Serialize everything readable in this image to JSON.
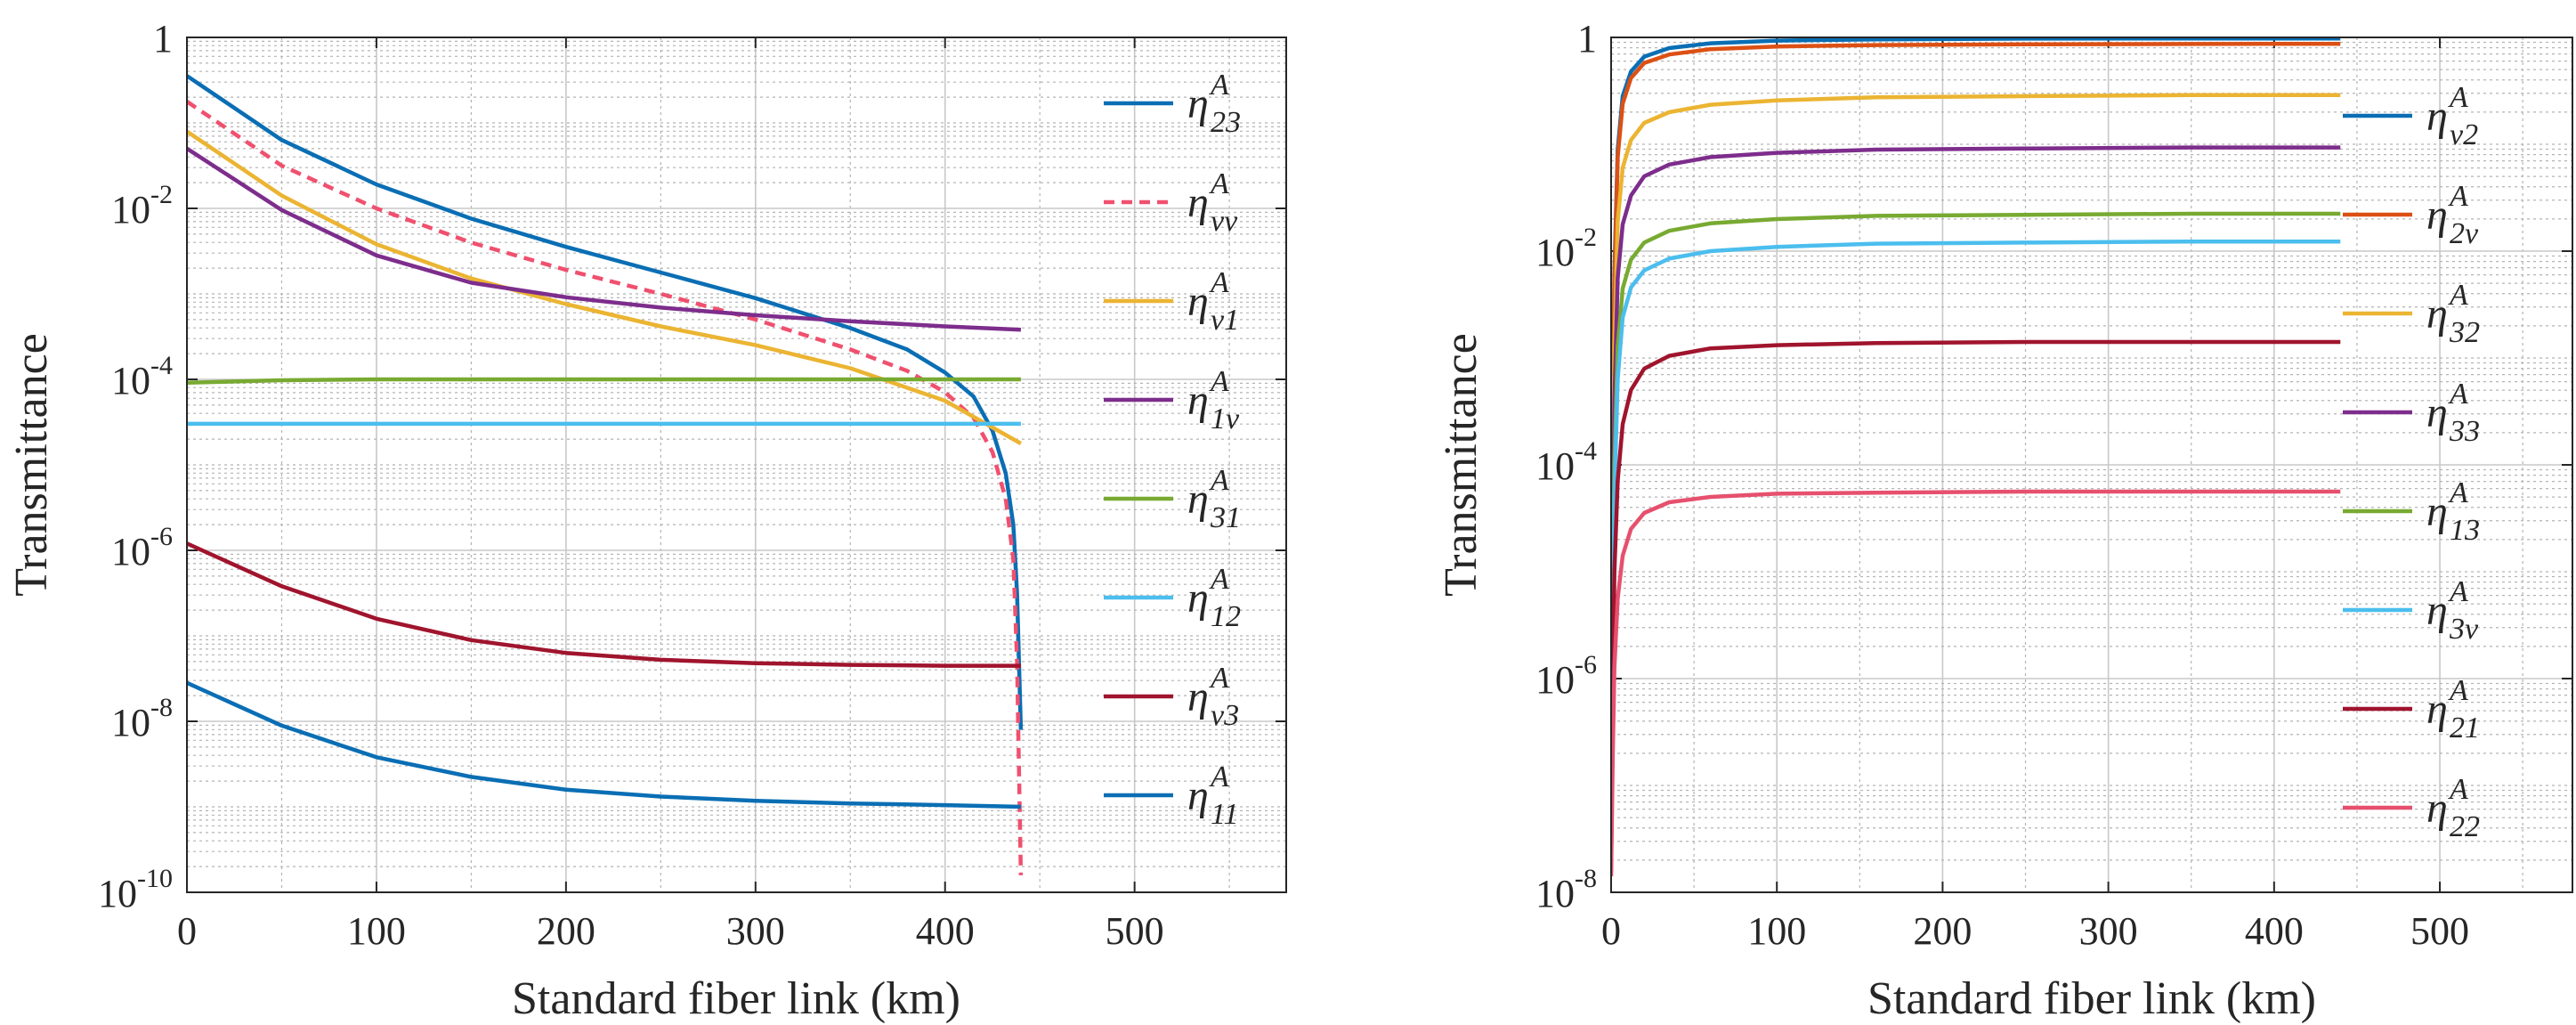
{
  "chart_data": [
    {
      "type": "line",
      "panel": "left",
      "xlabel": "Standard fiber link (km)",
      "ylabel": "Transmittance",
      "xlim": [
        0,
        580
      ],
      "ylim_log10": [
        -10,
        0
      ],
      "yscale": "log",
      "grid": true,
      "legend_position": "right",
      "x_ticks": [
        0,
        100,
        200,
        300,
        400,
        500
      ],
      "x_tick_labels": [
        "0",
        "100",
        "200",
        "300",
        "400",
        "500"
      ],
      "y_ticks_log10": [
        0,
        -2,
        -4,
        -6,
        -8,
        -10
      ],
      "y_tick_labels": [
        {
          "base": "1",
          "exp": ""
        },
        {
          "base": "10",
          "exp": "-2"
        },
        {
          "base": "10",
          "exp": "-4"
        },
        {
          "base": "10",
          "exp": "-6"
        },
        {
          "base": "10",
          "exp": "-8"
        },
        {
          "base": "10",
          "exp": "-10"
        }
      ],
      "series": [
        {
          "name": "η23A",
          "symbol": "η",
          "sup": "A",
          "sub": "23",
          "color": "#0a6eb4",
          "dash": false,
          "x": [
            0,
            50,
            100,
            150,
            200,
            250,
            300,
            350,
            380,
            400,
            415,
            425,
            432,
            436,
            438,
            440
          ],
          "log10_y": [
            -0.45,
            -1.2,
            -1.72,
            -2.12,
            -2.45,
            -2.75,
            -3.05,
            -3.4,
            -3.65,
            -3.92,
            -4.2,
            -4.6,
            -5.1,
            -5.7,
            -6.5,
            -8.1
          ]
        },
        {
          "name": "ηvvA",
          "symbol": "η",
          "sup": "A",
          "sub": "vv",
          "color": "#f0506e",
          "dash": true,
          "x": [
            0,
            50,
            100,
            150,
            200,
            250,
            300,
            350,
            380,
            400,
            415,
            425,
            432,
            436,
            438,
            440
          ],
          "log10_y": [
            -0.75,
            -1.5,
            -2.0,
            -2.4,
            -2.72,
            -3.0,
            -3.3,
            -3.65,
            -3.9,
            -4.15,
            -4.45,
            -4.85,
            -5.4,
            -6.1,
            -7.3,
            -9.8
          ]
        },
        {
          "name": "ηv1A",
          "symbol": "η",
          "sup": "A",
          "sub": "v1",
          "color": "#ebb432",
          "dash": false,
          "x": [
            0,
            50,
            100,
            150,
            200,
            250,
            300,
            350,
            400,
            440
          ],
          "log10_y": [
            -1.1,
            -1.85,
            -2.42,
            -2.82,
            -3.12,
            -3.38,
            -3.6,
            -3.87,
            -4.25,
            -4.75
          ]
        },
        {
          "name": "η1vA",
          "symbol": "η",
          "sup": "A",
          "sub": "1v",
          "color": "#7d2d8c",
          "dash": false,
          "x": [
            0,
            50,
            100,
            150,
            200,
            250,
            300,
            350,
            400,
            440
          ],
          "log10_y": [
            -1.3,
            -2.02,
            -2.55,
            -2.87,
            -3.04,
            -3.16,
            -3.25,
            -3.32,
            -3.38,
            -3.42
          ]
        },
        {
          "name": "η31A",
          "symbol": "η",
          "sup": "A",
          "sub": "31",
          "color": "#78aa32",
          "dash": false,
          "x": [
            0,
            50,
            100,
            200,
            300,
            440
          ],
          "log10_y": [
            -4.04,
            -4.01,
            -4.0,
            -4.0,
            -4.0,
            -4.0
          ]
        },
        {
          "name": "η12A",
          "symbol": "η",
          "sup": "A",
          "sub": "12",
          "color": "#4bbeee",
          "dash": false,
          "x": [
            0,
            440
          ],
          "log10_y": [
            -4.52,
            -4.52
          ]
        },
        {
          "name": "ηv3A",
          "symbol": "η",
          "sup": "A",
          "sub": "v3",
          "color": "#a0142d",
          "dash": false,
          "x": [
            0,
            50,
            100,
            150,
            200,
            250,
            300,
            350,
            400,
            440
          ],
          "log10_y": [
            -5.92,
            -6.42,
            -6.8,
            -7.05,
            -7.2,
            -7.28,
            -7.32,
            -7.34,
            -7.35,
            -7.35
          ]
        },
        {
          "name": "η11A",
          "symbol": "η",
          "sup": "A",
          "sub": "11",
          "color": "#0a6eb4",
          "dash": false,
          "x": [
            0,
            50,
            100,
            150,
            200,
            250,
            300,
            350,
            400,
            440
          ],
          "log10_y": [
            -7.55,
            -8.05,
            -8.42,
            -8.65,
            -8.8,
            -8.88,
            -8.93,
            -8.96,
            -8.98,
            -9.0
          ]
        }
      ]
    },
    {
      "type": "line",
      "panel": "right",
      "xlabel": "Standard fiber link (km)",
      "ylabel": "Transmittance",
      "xlim": [
        0,
        580
      ],
      "ylim_log10": [
        -8,
        0
      ],
      "yscale": "log",
      "grid": true,
      "legend_position": "right",
      "x_ticks": [
        0,
        100,
        200,
        300,
        400,
        500
      ],
      "x_tick_labels": [
        "0",
        "100",
        "200",
        "300",
        "400",
        "500"
      ],
      "y_ticks_log10": [
        0,
        -2,
        -4,
        -6,
        -8
      ],
      "y_tick_labels": [
        {
          "base": "1",
          "exp": ""
        },
        {
          "base": "10",
          "exp": "-2"
        },
        {
          "base": "10",
          "exp": "-4"
        },
        {
          "base": "10",
          "exp": "-6"
        },
        {
          "base": "10",
          "exp": "-8"
        }
      ],
      "series": [
        {
          "name": "ηv2A",
          "symbol": "η",
          "sup": "A",
          "sub": "v2",
          "color": "#0a6eb4",
          "dash": false,
          "x": [
            0,
            1,
            2,
            4,
            7,
            12,
            20,
            35,
            60,
            100,
            160,
            250,
            350,
            440
          ],
          "log10_y": [
            -7.3,
            -4.0,
            -2.2,
            -1.05,
            -0.55,
            -0.32,
            -0.18,
            -0.1,
            -0.055,
            -0.03,
            -0.018,
            -0.012,
            -0.01,
            -0.01
          ]
        },
        {
          "name": "η2vA",
          "symbol": "η",
          "sup": "A",
          "sub": "2v",
          "color": "#dc5014",
          "dash": false,
          "x": [
            0,
            1,
            2,
            4,
            7,
            12,
            20,
            35,
            60,
            100,
            160,
            250,
            350,
            440
          ],
          "log10_y": [
            -7.35,
            -4.1,
            -2.3,
            -1.12,
            -0.62,
            -0.38,
            -0.24,
            -0.16,
            -0.11,
            -0.085,
            -0.072,
            -0.065,
            -0.062,
            -0.06
          ]
        },
        {
          "name": "η32A",
          "symbol": "η",
          "sup": "A",
          "sub": "32",
          "color": "#ebb432",
          "dash": false,
          "x": [
            0,
            1,
            2,
            4,
            7,
            12,
            20,
            35,
            60,
            100,
            160,
            250,
            350,
            440
          ],
          "log10_y": [
            -7.5,
            -4.6,
            -2.9,
            -1.72,
            -1.22,
            -0.96,
            -0.8,
            -0.7,
            -0.63,
            -0.59,
            -0.56,
            -0.55,
            -0.54,
            -0.54
          ]
        },
        {
          "name": "η33A",
          "symbol": "η",
          "sup": "A",
          "sub": "33",
          "color": "#7d2d8c",
          "dash": false,
          "x": [
            0,
            1,
            2,
            4,
            7,
            12,
            20,
            35,
            60,
            100,
            160,
            250,
            350,
            440
          ],
          "log10_y": [
            -7.6,
            -5.0,
            -3.4,
            -2.25,
            -1.75,
            -1.48,
            -1.3,
            -1.19,
            -1.12,
            -1.08,
            -1.05,
            -1.04,
            -1.03,
            -1.03
          ]
        },
        {
          "name": "η13A",
          "symbol": "η",
          "sup": "A",
          "sub": "13",
          "color": "#78aa32",
          "dash": false,
          "x": [
            0,
            1,
            2,
            4,
            7,
            12,
            20,
            35,
            60,
            100,
            160,
            250,
            350,
            440
          ],
          "log10_y": [
            -7.7,
            -5.5,
            -4.0,
            -2.9,
            -2.35,
            -2.08,
            -1.92,
            -1.81,
            -1.74,
            -1.7,
            -1.67,
            -1.66,
            -1.65,
            -1.65
          ]
        },
        {
          "name": "η3vA",
          "symbol": "η",
          "sup": "A",
          "sub": "3v",
          "color": "#4bbeee",
          "dash": false,
          "x": [
            0,
            1,
            2,
            4,
            7,
            12,
            20,
            35,
            60,
            100,
            160,
            250,
            350,
            440
          ],
          "log10_y": [
            -7.75,
            -5.7,
            -4.3,
            -3.2,
            -2.62,
            -2.34,
            -2.18,
            -2.07,
            -2.0,
            -1.96,
            -1.93,
            -1.92,
            -1.91,
            -1.91
          ]
        },
        {
          "name": "η21A",
          "symbol": "η",
          "sup": "A",
          "sub": "21",
          "color": "#a0142d",
          "dash": false,
          "x": [
            0,
            1,
            2,
            4,
            7,
            12,
            20,
            35,
            60,
            100,
            160,
            250,
            350,
            440
          ],
          "log10_y": [
            -7.8,
            -6.1,
            -5.0,
            -4.15,
            -3.62,
            -3.3,
            -3.1,
            -2.98,
            -2.91,
            -2.88,
            -2.86,
            -2.85,
            -2.85,
            -2.85
          ]
        },
        {
          "name": "η22A",
          "symbol": "η",
          "sup": "A",
          "sub": "22",
          "color": "#e6506e",
          "dash": false,
          "x": [
            0,
            1,
            2,
            4,
            7,
            12,
            20,
            35,
            60,
            100,
            160,
            250,
            350,
            440
          ],
          "log10_y": [
            -7.85,
            -6.7,
            -5.9,
            -5.25,
            -4.85,
            -4.6,
            -4.45,
            -4.35,
            -4.3,
            -4.27,
            -4.26,
            -4.25,
            -4.25,
            -4.25
          ]
        }
      ]
    }
  ]
}
